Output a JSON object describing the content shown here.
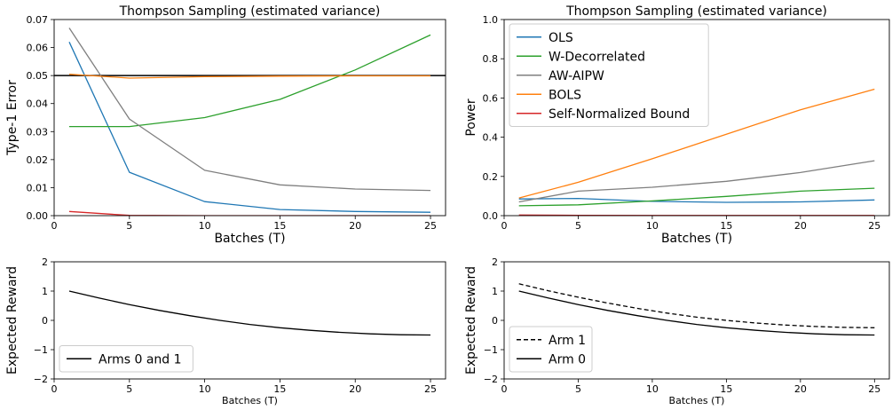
{
  "chart_data": [
    {
      "type": "line",
      "title": "Thompson Sampling (estimated variance)",
      "xlabel": "Batches (T)",
      "ylabel": "Type-1 Error",
      "x": [
        1,
        5,
        10,
        15,
        20,
        25
      ],
      "xlim": [
        0,
        26
      ],
      "ylim": [
        0,
        0.07
      ],
      "xticks": [
        0,
        5,
        10,
        15,
        20,
        25
      ],
      "yticks": [
        0.0,
        0.01,
        0.02,
        0.03,
        0.04,
        0.05,
        0.06,
        0.07
      ],
      "ytick_labels": [
        "0.00",
        "0.01",
        "0.02",
        "0.03",
        "0.04",
        "0.05",
        "0.06",
        "0.07"
      ],
      "hlines": [
        {
          "y": 0.05,
          "color": "#000000"
        }
      ],
      "legend": null,
      "series": [
        {
          "color": "#1f77b4",
          "values": [
            0.062,
            0.0155,
            0.005,
            0.0022,
            0.0015,
            0.0012
          ]
        },
        {
          "color": "#2ca02c",
          "values": [
            0.0318,
            0.0318,
            0.035,
            0.0415,
            0.052,
            0.0645
          ]
        },
        {
          "color": "#7f7f7f",
          "values": [
            0.067,
            0.0345,
            0.0162,
            0.011,
            0.0095,
            0.009
          ]
        },
        {
          "color": "#ff7f0e",
          "values": [
            0.0505,
            0.0491,
            0.0496,
            0.0498,
            0.0499,
            0.0499
          ]
        },
        {
          "color": "#d62728",
          "values": [
            0.0015,
            0.0001,
            0.0,
            0.0,
            0.0,
            0.0
          ]
        }
      ]
    },
    {
      "type": "line",
      "title": "Thompson Sampling (estimated variance)",
      "xlabel": "Batches (T)",
      "ylabel": "Power",
      "x": [
        1,
        5,
        10,
        15,
        20,
        25
      ],
      "xlim": [
        0,
        26
      ],
      "ylim": [
        0,
        1.0
      ],
      "xticks": [
        0,
        5,
        10,
        15,
        20,
        25
      ],
      "yticks": [
        0.0,
        0.2,
        0.4,
        0.6,
        0.8,
        1.0
      ],
      "ytick_labels": [
        "0.0",
        "0.2",
        "0.4",
        "0.6",
        "0.8",
        "1.0"
      ],
      "hlines": [],
      "legend": "upper-left",
      "series": [
        {
          "name": "OLS",
          "color": "#1f77b4",
          "values": [
            0.085,
            0.088,
            0.073,
            0.068,
            0.07,
            0.08
          ]
        },
        {
          "name": "W-Decorrelated",
          "color": "#2ca02c",
          "values": [
            0.05,
            0.055,
            0.075,
            0.098,
            0.125,
            0.14
          ]
        },
        {
          "name": "AW-AIPW",
          "color": "#7f7f7f",
          "values": [
            0.07,
            0.125,
            0.145,
            0.175,
            0.22,
            0.28
          ]
        },
        {
          "name": "BOLS",
          "color": "#ff7f0e",
          "values": [
            0.09,
            0.17,
            0.29,
            0.415,
            0.54,
            0.645
          ]
        },
        {
          "name": "Self-Normalized Bound",
          "color": "#d62728",
          "values": [
            0.003,
            0.002,
            0.001,
            0.001,
            0.001,
            0.001
          ]
        }
      ]
    },
    {
      "type": "line",
      "title": "",
      "xlabel": "Batches (T)",
      "ylabel": "Expected Reward",
      "xlim": [
        0,
        26
      ],
      "ylim": [
        -2,
        2
      ],
      "xticks": [
        0,
        5,
        10,
        15,
        20,
        25
      ],
      "yticks": [
        -2,
        -1,
        0,
        1,
        2
      ],
      "ytick_labels": [
        "−2",
        "−1",
        "0",
        "1",
        "2"
      ],
      "hlines": [],
      "legend": "lower-left",
      "series": [
        {
          "name": "Arms 0 and 1",
          "color": "#000000",
          "dash": "solid",
          "x": [
            1,
            3,
            5,
            7,
            9,
            11,
            13,
            15,
            17,
            19,
            21,
            23,
            25
          ],
          "values": [
            1.0,
            0.76,
            0.54,
            0.34,
            0.16,
            0.0,
            -0.14,
            -0.25,
            -0.34,
            -0.41,
            -0.46,
            -0.49,
            -0.5
          ]
        }
      ]
    },
    {
      "type": "line",
      "title": "",
      "xlabel": "Batches (T)",
      "ylabel": "Expected Reward",
      "xlim": [
        0,
        26
      ],
      "ylim": [
        -2,
        2
      ],
      "xticks": [
        0,
        5,
        10,
        15,
        20,
        25
      ],
      "yticks": [
        -2,
        -1,
        0,
        1,
        2
      ],
      "ytick_labels": [
        "−2",
        "−1",
        "0",
        "1",
        "2"
      ],
      "hlines": [],
      "legend": "lower-left",
      "series": [
        {
          "name": "Arm 1",
          "color": "#000000",
          "dash": "dashed",
          "x": [
            1,
            3,
            5,
            7,
            9,
            11,
            13,
            15,
            17,
            19,
            21,
            23,
            25
          ],
          "values": [
            1.25,
            1.01,
            0.79,
            0.59,
            0.41,
            0.25,
            0.11,
            0.0,
            -0.09,
            -0.16,
            -0.21,
            -0.24,
            -0.25
          ]
        },
        {
          "name": "Arm 0",
          "color": "#000000",
          "dash": "solid",
          "x": [
            1,
            3,
            5,
            7,
            9,
            11,
            13,
            15,
            17,
            19,
            21,
            23,
            25
          ],
          "values": [
            1.0,
            0.76,
            0.54,
            0.34,
            0.16,
            0.0,
            -0.14,
            -0.25,
            -0.34,
            -0.41,
            -0.46,
            -0.49,
            -0.5
          ]
        }
      ]
    }
  ]
}
